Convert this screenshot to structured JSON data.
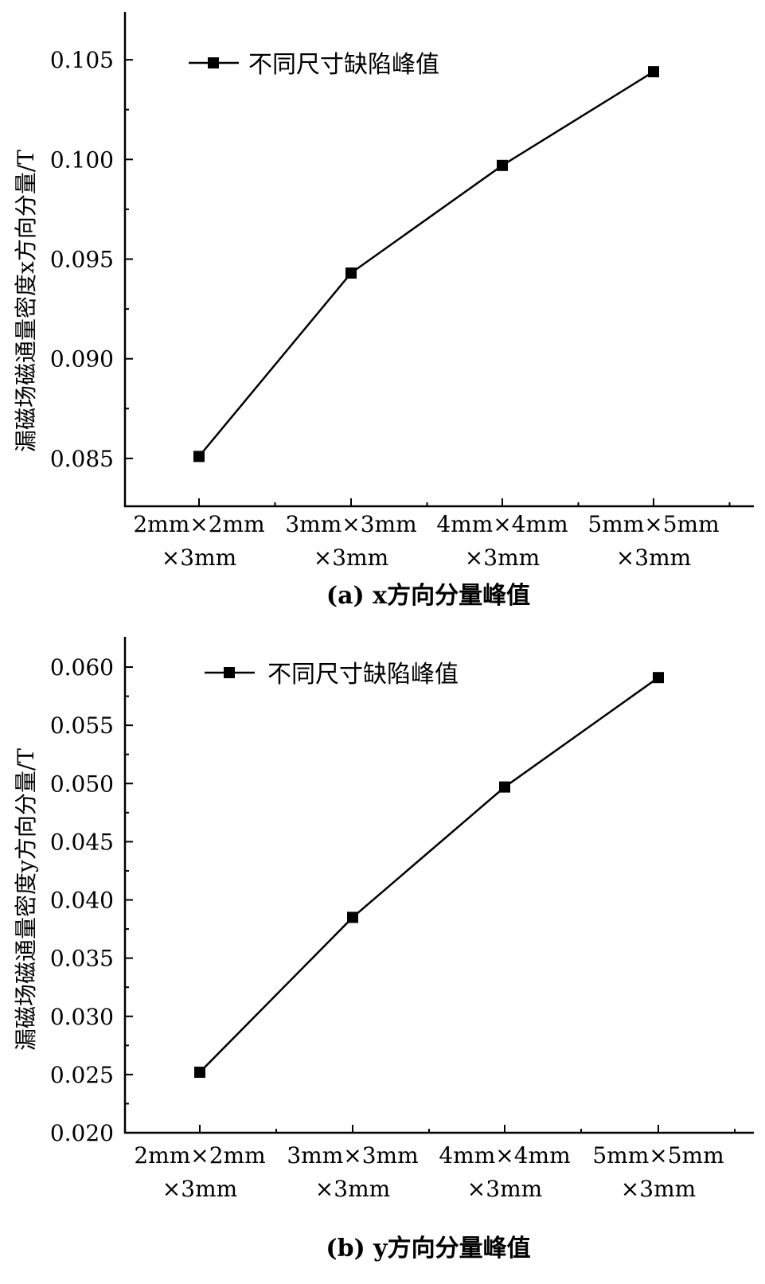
{
  "chart_data": [
    {
      "type": "line",
      "caption": "(a) x方向分量峰值",
      "ylabel": "漏磁场磁通量密度x方向分量/T",
      "categories": [
        [
          "2mm×2mm",
          "×3mm"
        ],
        [
          "3mm×3mm",
          "×3mm"
        ],
        [
          "4mm×4mm",
          "×3mm"
        ],
        [
          "5mm×5mm",
          "×3mm"
        ]
      ],
      "series": [
        {
          "name": "不同尺寸缺陷峰值",
          "values": [
            0.0851,
            0.0943,
            0.0997,
            0.1044
          ]
        }
      ],
      "ylim": [
        0.0826,
        0.1074
      ],
      "yticks": [
        "0.085",
        "0.090",
        "0.095",
        "0.100",
        "0.105"
      ],
      "legend_position": "top-left",
      "grid": false
    },
    {
      "type": "line",
      "caption": "(b) y方向分量峰值",
      "ylabel": "漏磁场磁通量密度y方向分量/T",
      "categories": [
        [
          "2mm×2mm",
          "×3mm"
        ],
        [
          "3mm×3mm",
          "×3mm"
        ],
        [
          "4mm×4mm",
          "×3mm"
        ],
        [
          "5mm×5mm",
          "×3mm"
        ]
      ],
      "series": [
        {
          "name": "不同尺寸缺陷峰值",
          "values": [
            0.0252,
            0.0385,
            0.0497,
            0.0591
          ]
        }
      ],
      "ylim": [
        0.02,
        0.0626
      ],
      "yticks": [
        "0.020",
        "0.025",
        "0.030",
        "0.035",
        "0.040",
        "0.045",
        "0.050",
        "0.055",
        "0.060"
      ],
      "legend_position": "top-left",
      "grid": false
    }
  ]
}
